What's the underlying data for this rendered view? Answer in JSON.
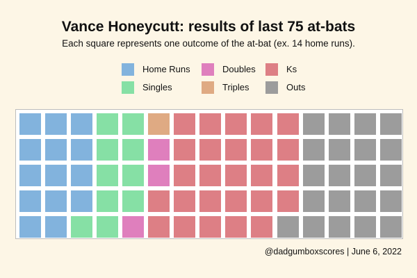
{
  "title": "Vance Honeycutt: results of last 75 at-bats",
  "subtitle": "Each square represents one outcome of the at-bat (ex. 14 home runs).",
  "credit": "@dadgumboxscores | June 6, 2022",
  "chart_data": {
    "type": "waffle",
    "title": "Vance Honeycutt: results of last 75 at-bats",
    "subtitle": "Each square represents one outcome of the at-bat (ex. 14 home runs).",
    "rows": 5,
    "columns": 15,
    "fill_order": "column-major, top to bottom then left to right",
    "legend_position": "top-center, 2 rows x 3 columns",
    "categories": [
      {
        "name": "Home Runs",
        "value": 14,
        "color": "#82b3dd"
      },
      {
        "name": "Singles",
        "value": 10,
        "color": "#86e0a5"
      },
      {
        "name": "Doubles",
        "value": 3,
        "color": "#df7fbd"
      },
      {
        "name": "Triples",
        "value": 1,
        "color": "#dfaa83"
      },
      {
        "name": "Ks",
        "value": 26,
        "color": "#dd7f85"
      },
      {
        "name": "Outs",
        "value": 21,
        "color": "#9c9c9c"
      }
    ],
    "fill_sequence": [
      "Home Runs",
      "Singles",
      "Doubles",
      "Triples",
      "Doubles",
      "Ks",
      "Outs"
    ],
    "fill_counts": [
      14,
      10,
      1,
      1,
      2,
      26,
      21
    ],
    "total": 75
  }
}
